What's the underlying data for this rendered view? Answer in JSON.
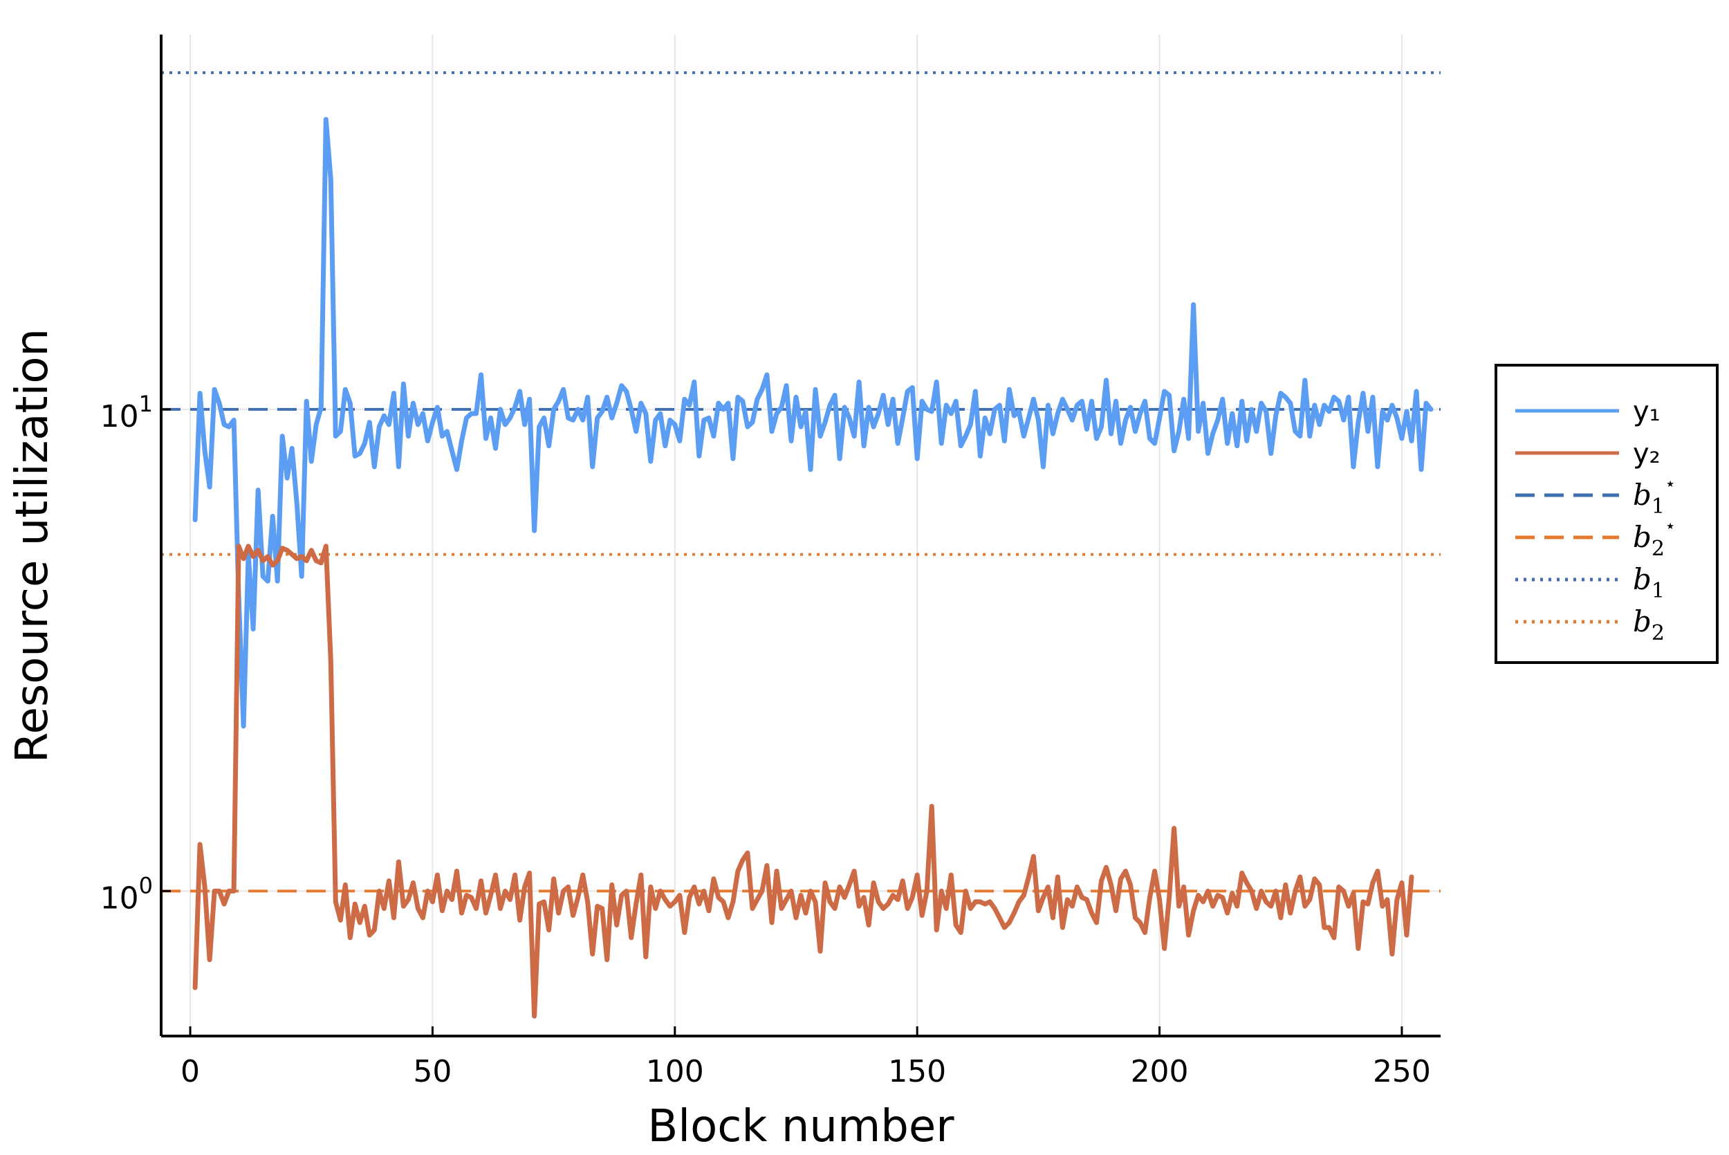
{
  "chart_data": {
    "type": "line",
    "xlabel": "Block number",
    "ylabel": "Resource utilization",
    "xlim": [
      -6,
      258
    ],
    "ylim": [
      0.5,
      60
    ],
    "yscale": "log10",
    "grid": true,
    "legend_position": "right",
    "x_ticks": [
      {
        "value": 0,
        "label": "0"
      },
      {
        "value": 50,
        "label": "50"
      },
      {
        "value": 100,
        "label": "100"
      },
      {
        "value": 150,
        "label": "150"
      },
      {
        "value": 200,
        "label": "200"
      },
      {
        "value": 250,
        "label": "250"
      }
    ],
    "y_ticks": [
      {
        "value": 1,
        "base": "10",
        "exponent": "0"
      },
      {
        "value": 10,
        "base": "10",
        "exponent": "1"
      }
    ],
    "series": [
      {
        "name": "y₁",
        "color": "#5a9df3",
        "style": "solid",
        "x_start": 1,
        "x_step": 1,
        "values": [
          5.9,
          10.8,
          8.2,
          6.9,
          11.0,
          10.3,
          9.3,
          9.2,
          9.5,
          4.1,
          2.2,
          5.0,
          3.5,
          6.8,
          4.5,
          4.4,
          6.0,
          4.4,
          8.8,
          7.2,
          8.3,
          6.4,
          4.5,
          10.4,
          7.8,
          9.3,
          10.1,
          40.0,
          30.0,
          8.8,
          9.0,
          11.0,
          10.3,
          8.0,
          8.1,
          8.5,
          9.4,
          7.6,
          9.2,
          9.7,
          9.3,
          10.8,
          7.6,
          11.3,
          8.8,
          10.3,
          9.3,
          9.8,
          8.6,
          9.4,
          10.1,
          8.8,
          9.0,
          8.2,
          7.5,
          8.6,
          9.6,
          9.8,
          9.8,
          11.8,
          8.7,
          9.6,
          8.3,
          10.0,
          9.3,
          9.6,
          10.1,
          10.9,
          9.3,
          10.5,
          5.6,
          9.2,
          9.6,
          8.4,
          10.0,
          10.4,
          11.0,
          9.6,
          9.5,
          10.0,
          9.5,
          10.6,
          7.6,
          9.6,
          9.9,
          10.6,
          9.6,
          10.3,
          11.2,
          10.9,
          10.0,
          9.0,
          10.3,
          9.8,
          7.8,
          9.5,
          9.8,
          8.4,
          9.5,
          9.3,
          8.6,
          10.5,
          10.2,
          11.4,
          8.0,
          9.5,
          9.6,
          8.8,
          10.3,
          10.0,
          10.3,
          7.9,
          10.6,
          10.4,
          9.2,
          9.4,
          10.5,
          11.0,
          11.8,
          9.0,
          9.8,
          10.1,
          11.2,
          8.6,
          10.6,
          9.2,
          9.9,
          7.5,
          11.0,
          8.8,
          9.4,
          10.2,
          10.7,
          7.9,
          10.1,
          9.6,
          8.8,
          11.4,
          8.4,
          10.1,
          9.2,
          9.8,
          10.7,
          9.3,
          10.5,
          8.5,
          9.6,
          10.9,
          11.1,
          7.9,
          10.4,
          10.0,
          9.9,
          11.4,
          8.5,
          10.2,
          9.8,
          10.4,
          8.4,
          8.8,
          9.3,
          10.9,
          8.0,
          9.6,
          8.9,
          10.0,
          10.2,
          8.6,
          11.0,
          9.7,
          9.9,
          8.8,
          9.6,
          10.5,
          9.5,
          7.6,
          10.2,
          8.9,
          9.8,
          10.5,
          10.0,
          9.5,
          10.2,
          10.4,
          9.1,
          10.4,
          8.7,
          9.2,
          11.5,
          8.9,
          10.4,
          8.5,
          9.5,
          10.1,
          9.0,
          9.8,
          10.4,
          8.7,
          8.5,
          9.6,
          10.9,
          10.7,
          8.2,
          9.0,
          10.5,
          8.7,
          16.5,
          9.0,
          10.3,
          8.1,
          8.9,
          9.5,
          10.5,
          8.5,
          9.8,
          8.4,
          10.4,
          8.6,
          10.0,
          9.0,
          10.3,
          9.9,
          8.1,
          9.7,
          10.8,
          10.6,
          10.3,
          9.0,
          8.8,
          11.5,
          8.8,
          10.2,
          9.3,
          10.2,
          9.9,
          10.6,
          10.4,
          9.5,
          10.6,
          7.6,
          9.4,
          10.8,
          9.0,
          10.6,
          7.6,
          9.9,
          9.5,
          10.2,
          9.6,
          8.7,
          9.9,
          8.6,
          10.9,
          7.5,
          10.3,
          10.0
        ]
      },
      {
        "name": "y₂",
        "color": "#cc6b45",
        "style": "solid",
        "x_start": 1,
        "x_step": 1,
        "values": [
          0.63,
          1.25,
          1.02,
          0.72,
          1.0,
          1.0,
          0.94,
          1.0,
          1.0,
          5.2,
          4.9,
          5.2,
          4.95,
          5.1,
          4.85,
          4.95,
          4.75,
          4.85,
          5.15,
          5.1,
          5.0,
          4.9,
          4.95,
          4.85,
          5.1,
          4.85,
          4.8,
          5.2,
          3.0,
          0.95,
          0.87,
          1.03,
          0.8,
          0.94,
          0.86,
          0.93,
          0.81,
          0.83,
          1.0,
          0.92,
          1.05,
          0.88,
          1.15,
          0.93,
          0.96,
          1.04,
          0.92,
          0.88,
          1.0,
          0.95,
          1.08,
          0.91,
          1.0,
          0.96,
          1.1,
          0.9,
          0.98,
          0.97,
          0.92,
          1.05,
          0.9,
          0.98,
          1.08,
          0.92,
          1.0,
          0.96,
          1.08,
          0.87,
          1.02,
          1.09,
          0.55,
          0.94,
          0.95,
          0.83,
          1.06,
          0.9,
          1.0,
          1.02,
          0.89,
          0.97,
          1.08,
          0.95,
          0.74,
          0.93,
          0.92,
          0.72,
          1.03,
          0.85,
          0.98,
          1.0,
          0.8,
          0.94,
          1.08,
          0.73,
          1.02,
          0.92,
          1.0,
          0.96,
          0.93,
          0.95,
          0.98,
          0.82,
          0.97,
          1.02,
          0.94,
          1.0,
          0.91,
          1.06,
          0.97,
          0.95,
          0.88,
          0.95,
          1.1,
          1.16,
          1.2,
          0.92,
          0.96,
          1.0,
          1.13,
          0.86,
          1.1,
          0.92,
          0.96,
          1.0,
          0.88,
          0.98,
          0.9,
          1.0,
          0.95,
          0.75,
          1.04,
          0.95,
          0.92,
          1.02,
          0.97,
          1.03,
          1.1,
          0.93,
          0.97,
          0.85,
          1.04,
          0.95,
          0.92,
          0.94,
          0.98,
          0.96,
          1.05,
          0.92,
          0.97,
          1.08,
          0.89,
          1.0,
          1.5,
          0.83,
          1.0,
          0.92,
          1.08,
          0.85,
          0.82,
          1.0,
          0.92,
          0.95,
          0.95,
          0.94,
          0.95,
          0.92,
          0.88,
          0.84,
          0.86,
          0.9,
          0.95,
          0.98,
          1.07,
          1.18,
          0.91,
          0.97,
          1.02,
          0.88,
          1.07,
          0.84,
          0.96,
          0.93,
          1.02,
          0.97,
          0.96,
          0.9,
          0.86,
          1.05,
          1.12,
          1.03,
          0.91,
          1.06,
          1.1,
          1.03,
          0.88,
          0.86,
          0.82,
          0.97,
          1.1,
          0.96,
          0.76,
          0.97,
          1.35,
          0.93,
          1.02,
          0.81,
          0.91,
          0.98,
          0.95,
          1.0,
          0.93,
          0.98,
          0.97,
          0.9,
          0.99,
          0.93,
          1.09,
          1.04,
          1.0,
          0.92,
          1.0,
          0.95,
          0.93,
          1.0,
          0.88,
          1.03,
          0.9,
          1.0,
          1.07,
          0.93,
          0.96,
          1.06,
          1.03,
          0.84,
          0.84,
          0.8,
          1.02,
          1.0,
          0.93,
          0.99,
          0.76,
          0.95,
          0.94,
          1.04,
          1.1,
          0.93,
          0.96,
          0.74,
          0.96,
          1.04,
          0.81,
          1.07
        ]
      },
      {
        "name": "b₁⋆",
        "color": "#3f6fb0",
        "style": "dashed",
        "constant": 10
      },
      {
        "name": "b₂⋆",
        "color": "#e57a2e",
        "style": "dashed",
        "constant": 1
      },
      {
        "name": "b₁",
        "color": "#3f6fb0",
        "style": "dotted",
        "constant": 50
      },
      {
        "name": "b₂",
        "color": "#e57a2e",
        "style": "dotted",
        "constant": 5
      }
    ],
    "legend": [
      {
        "label": "y₁",
        "math": false
      },
      {
        "label": "y₂",
        "math": false
      },
      {
        "label": "b",
        "sub": "1",
        "sup": "⋆",
        "math": true
      },
      {
        "label": "b",
        "sub": "2",
        "sup": "⋆",
        "math": true
      },
      {
        "label": "b",
        "sub": "1",
        "sup": "",
        "math": true
      },
      {
        "label": "b",
        "sub": "2",
        "sup": "",
        "math": true
      }
    ]
  }
}
